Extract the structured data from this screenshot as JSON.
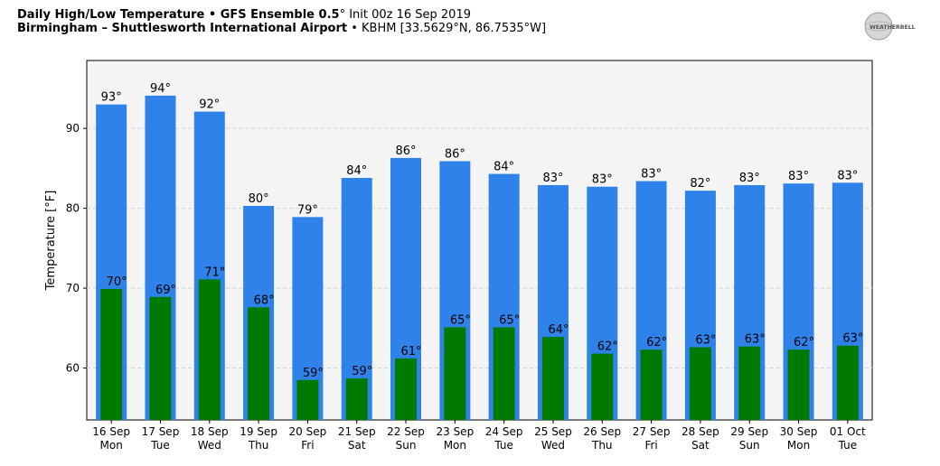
{
  "header": {
    "title_bold": "Daily High/Low Temperature • GFS Ensemble 0.5",
    "title_deg": "°",
    "title_rest": " Init 00z 16 Sep 2019",
    "subtitle_bold": "Birmingham – Shuttlesworth International Airport",
    "subtitle_rest": " • KBHM [33.5629°N, 86.7535°W]",
    "logo_text": "WEATHERBELL",
    "logo_icon": "weatherbell-logo"
  },
  "chart_data": {
    "type": "bar",
    "ylabel": "Temperature [°F]",
    "ylim": [
      53.5,
      98.5
    ],
    "yticks": [
      60,
      70,
      80,
      90
    ],
    "grid": true,
    "categories": [
      {
        "date": "16 Sep",
        "day": "Mon"
      },
      {
        "date": "17 Sep",
        "day": "Tue"
      },
      {
        "date": "18 Sep",
        "day": "Wed"
      },
      {
        "date": "19 Sep",
        "day": "Thu"
      },
      {
        "date": "20 Sep",
        "day": "Fri"
      },
      {
        "date": "21 Sep",
        "day": "Sat"
      },
      {
        "date": "22 Sep",
        "day": "Sun"
      },
      {
        "date": "23 Sep",
        "day": "Mon"
      },
      {
        "date": "24 Sep",
        "day": "Tue"
      },
      {
        "date": "25 Sep",
        "day": "Wed"
      },
      {
        "date": "26 Sep",
        "day": "Thu"
      },
      {
        "date": "27 Sep",
        "day": "Fri"
      },
      {
        "date": "28 Sep",
        "day": "Sat"
      },
      {
        "date": "29 Sep",
        "day": "Sun"
      },
      {
        "date": "30 Sep",
        "day": "Mon"
      },
      {
        "date": "01 Oct",
        "day": "Tue"
      }
    ],
    "series": [
      {
        "color": "#2f82ea",
        "values": [
          93.0,
          94.1,
          92.1,
          80.3,
          78.9,
          83.8,
          86.3,
          85.9,
          84.3,
          82.9,
          82.7,
          83.4,
          82.2,
          82.9,
          83.1,
          83.2
        ],
        "labels": [
          "93°",
          "94°",
          "92°",
          "80°",
          "79°",
          "84°",
          "86°",
          "86°",
          "84°",
          "83°",
          "83°",
          "83°",
          "82°",
          "83°",
          "83°",
          "83°"
        ]
      },
      {
        "color": "#007b00",
        "values": [
          69.9,
          68.9,
          71.1,
          67.6,
          58.5,
          58.7,
          61.2,
          65.1,
          65.1,
          63.9,
          61.8,
          62.3,
          62.6,
          62.7,
          62.3,
          62.8
        ],
        "labels": [
          "70°",
          "69°",
          "71°",
          "68°",
          "59°",
          "59°",
          "61°",
          "65°",
          "65°",
          "64°",
          "62°",
          "62°",
          "63°",
          "63°",
          "62°",
          "63°"
        ]
      }
    ]
  }
}
